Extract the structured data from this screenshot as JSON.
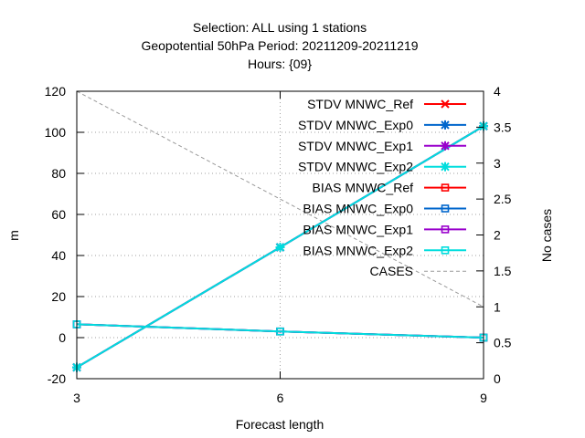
{
  "chart_data": {
    "type": "line",
    "title_lines": [
      "Selection: ALL using     1 stations",
      "Geopotential 50hPa   Period: 20211209-20211219",
      "Hours: {09}"
    ],
    "xlabel": "Forecast length",
    "ylabel": "m",
    "y2label": "No cases",
    "x": [
      3,
      6,
      9
    ],
    "xlim": [
      3,
      9
    ],
    "ylim": [
      -20,
      120
    ],
    "y2lim": [
      0,
      4
    ],
    "x_ticks": [
      3,
      6,
      9
    ],
    "y_ticks": [
      -20,
      0,
      20,
      40,
      60,
      80,
      100,
      120
    ],
    "y2_ticks": [
      "0",
      "0.5",
      "1",
      "1.5",
      "2",
      "2.5",
      "3",
      "3.5",
      "4"
    ],
    "grid": true,
    "legend_position": "top-right",
    "series": [
      {
        "name": "STDV MNWC_Ref",
        "color": "#ff0000",
        "marker": "x",
        "axis": "y",
        "values": [
          -14.5,
          44.0,
          103.0
        ]
      },
      {
        "name": "STDV MNWC_Exp0",
        "color": "#0066cc",
        "marker": "star",
        "axis": "y",
        "values": [
          -14.5,
          44.0,
          103.0
        ]
      },
      {
        "name": "STDV MNWC_Exp1",
        "color": "#9900cc",
        "marker": "star",
        "axis": "y",
        "values": [
          -14.5,
          44.0,
          103.0
        ]
      },
      {
        "name": "STDV MNWC_Exp2",
        "color": "#00dddd",
        "marker": "star",
        "axis": "y",
        "values": [
          -14.5,
          44.0,
          103.0
        ]
      },
      {
        "name": "BIAS MNWC_Ref",
        "color": "#ff0000",
        "marker": "square",
        "axis": "y",
        "values": [
          6.5,
          3.0,
          0.0
        ]
      },
      {
        "name": "BIAS MNWC_Exp0",
        "color": "#0066cc",
        "marker": "square",
        "axis": "y",
        "values": [
          6.5,
          3.0,
          0.0
        ]
      },
      {
        "name": "BIAS MNWC_Exp1",
        "color": "#9900cc",
        "marker": "square",
        "axis": "y",
        "values": [
          6.5,
          3.0,
          0.0
        ]
      },
      {
        "name": "BIAS MNWC_Exp2",
        "color": "#00dddd",
        "marker": "square",
        "axis": "y",
        "values": [
          6.5,
          3.0,
          0.0
        ]
      },
      {
        "name": "CASES",
        "color": "#999999",
        "marker": "none",
        "axis": "y2",
        "dashed": true,
        "values": [
          4,
          2.5,
          1
        ]
      }
    ]
  }
}
